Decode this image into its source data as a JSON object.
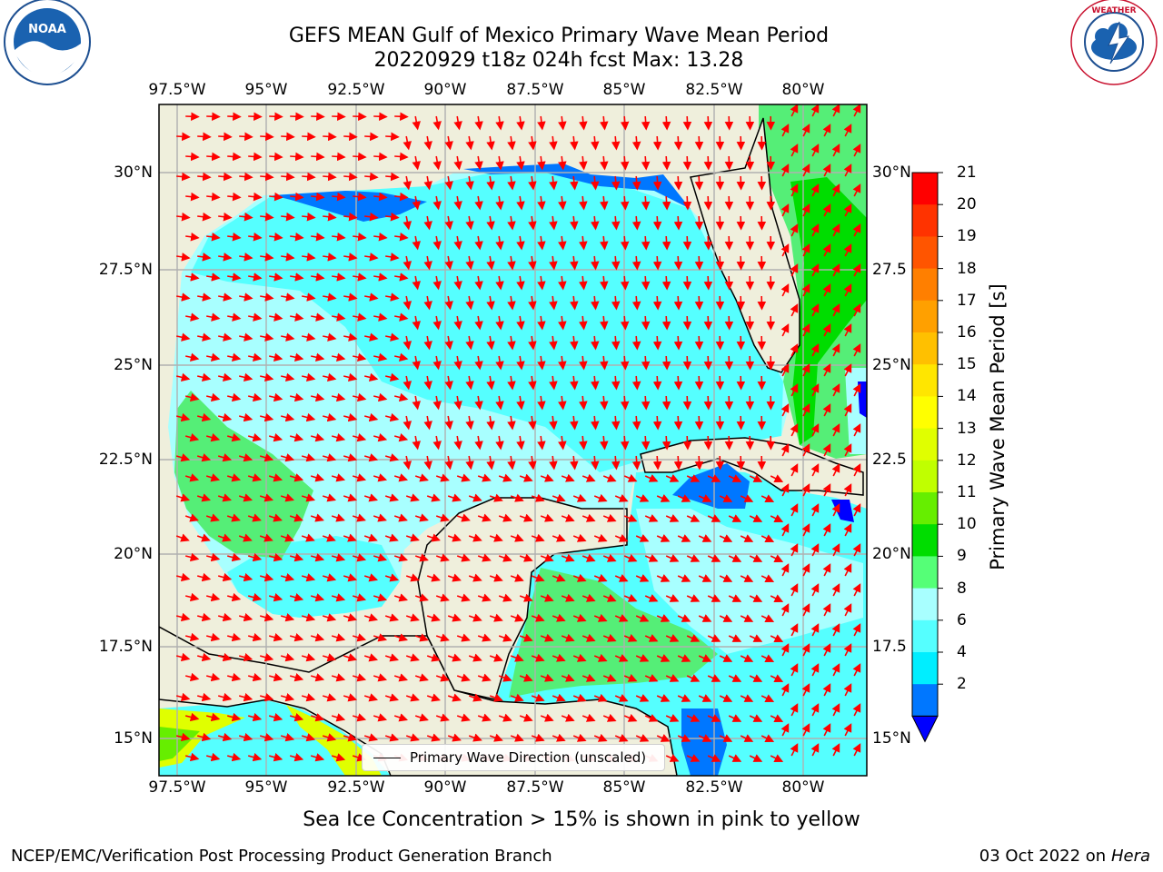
{
  "title_line1": "GEFS MEAN Gulf of Mexico Primary Wave Mean Period",
  "title_line2": "20220929 t18z 024h fcst   Max: 13.28",
  "lon_ticks": [
    "97.5°W",
    "95°W",
    "92.5°W",
    "90°W",
    "87.5°W",
    "85°W",
    "82.5°W",
    "80°W"
  ],
  "lat_ticks_left": [
    "30°N",
    "27.5°N",
    "25°N",
    "22.5°N",
    "20°N",
    "17.5°N",
    "15°N"
  ],
  "lat_ticks_right": [
    "30°N",
    "27.5",
    "25°N",
    "22.5",
    "20°N",
    "17.5",
    "15°N"
  ],
  "legend_label": "Primary Wave Direction (unscaled)",
  "colorbar": {
    "title": "Primary Wave Mean Period [s]",
    "ticks": [
      "21",
      "20",
      "19",
      "18",
      "17",
      "16",
      "15",
      "14",
      "13",
      "12",
      "11",
      "10",
      "9",
      "8",
      "6",
      "4",
      "2"
    ],
    "colors": [
      "#ff0000",
      "#ff3300",
      "#ff5500",
      "#ff7f00",
      "#ffa000",
      "#ffc000",
      "#ffe600",
      "#ffff00",
      "#e0ff00",
      "#c0ff00",
      "#66ee00",
      "#00dd00",
      "#55ff77",
      "#a8ffff",
      "#55ffff",
      "#00eeff",
      "#0077ff"
    ],
    "extend_color": "#0000ff"
  },
  "map_colors": {
    "land": "#efefdc",
    "ocean_6": "#55ffff",
    "ocean_8": "#a8ffff",
    "ocean_4": "#00eeff",
    "ocean_2": "#0077ff",
    "green_9": "#55ee77",
    "green_10": "#00dd00",
    "arrow": "#ff0000"
  },
  "note": "Sea Ice Concentration > 15% is shown in pink to yellow",
  "footer_left": "NCEP/EMC/Verification Post Processing Product Generation Branch",
  "footer_right_prefix": "03 Oct 2022 on ",
  "footer_right_host": "Hera",
  "logo_left": "noaa-logo",
  "logo_right": "nws-logo"
}
